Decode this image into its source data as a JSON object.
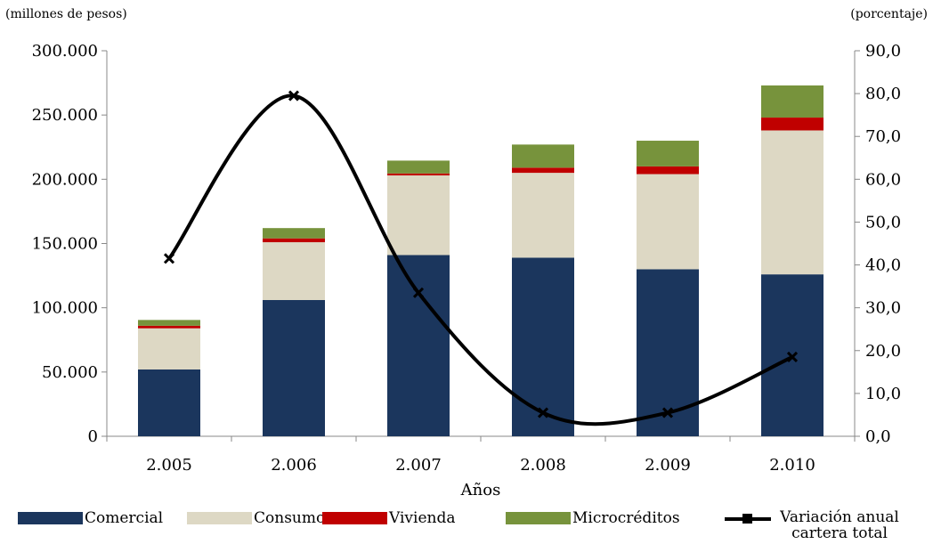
{
  "chart_data": {
    "type": "bar",
    "stacked": true,
    "left_axis_label": "(millones de pesos)",
    "right_axis_label": "(porcentaje)",
    "xlabel": "Años",
    "categories": [
      "2.005",
      "2.006",
      "2.007",
      "2.008",
      "2.009",
      "2.010"
    ],
    "ylim": [
      0,
      300000
    ],
    "y_ticks": [
      "0",
      "50.000",
      "100.000",
      "150.000",
      "200.000",
      "250.000",
      "300.000"
    ],
    "y2lim": [
      0,
      90
    ],
    "y2_ticks": [
      "0,0",
      "10,0",
      "20,0",
      "30,0",
      "40,0",
      "50,0",
      "60,0",
      "70,0",
      "80,0",
      "90,0"
    ],
    "series": [
      {
        "name": "Comercial",
        "color": "#1b365d",
        "values": [
          52000,
          106000,
          141000,
          139000,
          130000,
          126000
        ]
      },
      {
        "name": "Consumo",
        "color": "#ddd8c4",
        "values": [
          32000,
          45000,
          62000,
          66000,
          74000,
          112000
        ]
      },
      {
        "name": "Vivienda",
        "color": "#c00000",
        "values": [
          2000,
          3000,
          1500,
          4000,
          6000,
          10000
        ]
      },
      {
        "name": "Microcréditos",
        "color": "#77933c",
        "values": [
          4500,
          8000,
          10000,
          18000,
          20000,
          25000
        ]
      }
    ],
    "line_series": {
      "name": "Variación anual cartera total",
      "color": "#000000",
      "axis": "right",
      "values": [
        41.5,
        79.5,
        33.5,
        5.5,
        5.5,
        18.5
      ]
    },
    "legend_position": "bottom",
    "grid": false
  }
}
